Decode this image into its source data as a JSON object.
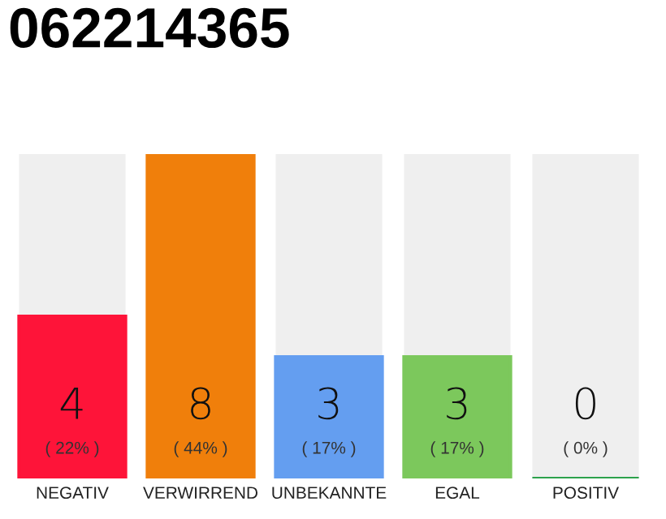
{
  "chart_data": {
    "type": "bar",
    "title": "062214365",
    "categories": [
      "NEGATIV",
      "VERWIRREND",
      "UNBEKANNTE",
      "EGAL",
      "POSITIV"
    ],
    "values": [
      4,
      8,
      3,
      3,
      0
    ],
    "colors": [
      "#fe1439",
      "#f07f0b",
      "#649ef0",
      "#7cc85c",
      "#2ca24c"
    ],
    "value_labels": [
      "4\n( 22% )",
      "8\n( 44% )",
      "3\n( 17% )",
      "3\n( 17% )",
      "0\n( 0% )"
    ],
    "ylim": [
      0,
      8
    ],
    "tick_labels": "x",
    "grid": false,
    "legend": false
  }
}
